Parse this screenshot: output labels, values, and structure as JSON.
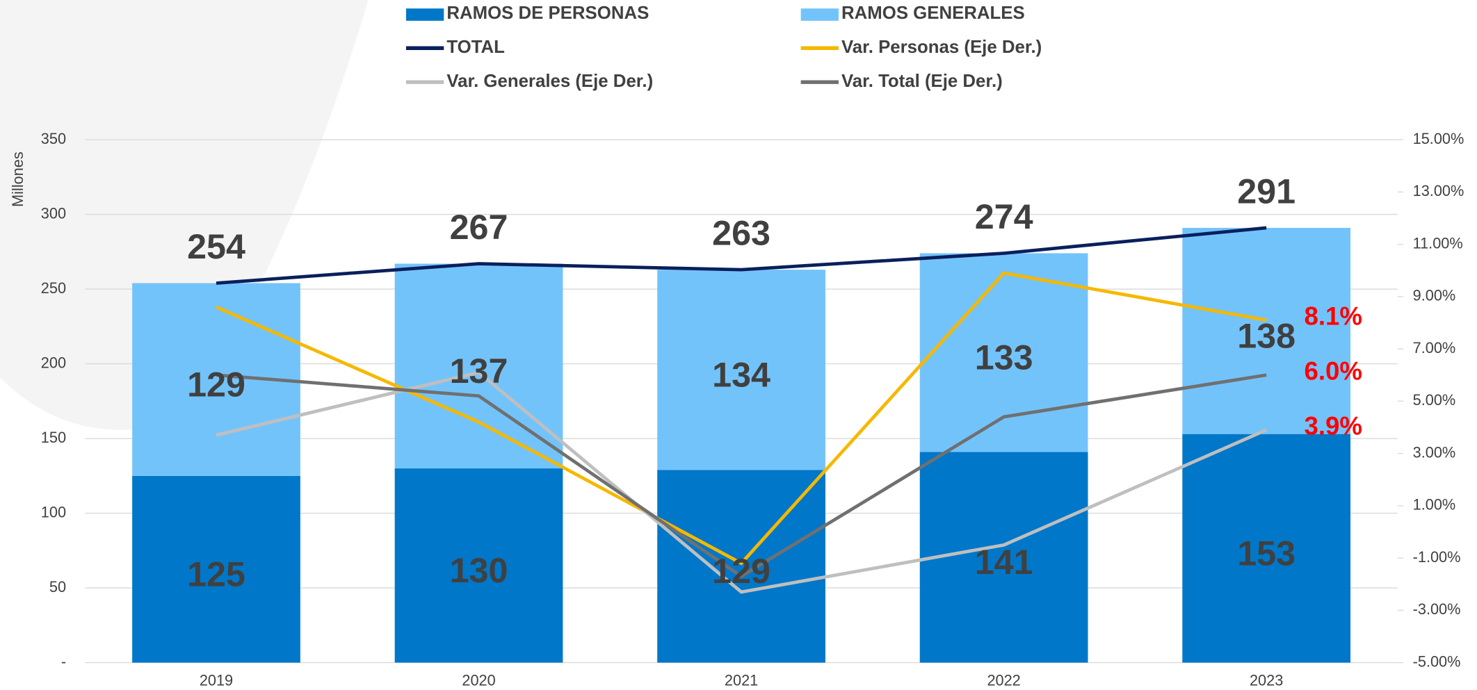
{
  "chart_data": {
    "type": "bar",
    "stacked": true,
    "ylabel": "Millones",
    "categories": [
      "2019",
      "2020",
      "2021",
      "2022",
      "2023"
    ],
    "series": [
      {
        "name": "RAMOS DE PERSONAS",
        "type": "bar",
        "color": "#0077c8",
        "values": [
          125,
          130,
          129,
          141,
          153
        ]
      },
      {
        "name": "RAMOS GENERALES",
        "type": "bar",
        "color": "#73c3fb",
        "values": [
          129,
          137,
          134,
          133,
          138
        ]
      },
      {
        "name": "TOTAL",
        "type": "line",
        "color": "#0a1f5c",
        "values": [
          254,
          267,
          263,
          274,
          291
        ]
      },
      {
        "name": "Var. Personas (Eje Der.)",
        "type": "line",
        "axis": "y2",
        "color": "#f5b800",
        "values": [
          8.6,
          4.2,
          -1.2,
          9.9,
          8.1
        ],
        "value_labels": [
          null,
          null,
          null,
          null,
          "8.1%"
        ]
      },
      {
        "name": "Var. Generales (Eje Der.)",
        "type": "line",
        "axis": "y2",
        "color": "#bfbfbf",
        "values": [
          3.7,
          6.1,
          -2.3,
          -0.5,
          3.9
        ],
        "value_labels": [
          null,
          null,
          null,
          null,
          "3.9%"
        ]
      },
      {
        "name": "Var. Total  (Eje Der.)",
        "type": "line",
        "axis": "y2",
        "color": "#707070",
        "values": [
          6.0,
          5.2,
          -1.7,
          4.4,
          6.0
        ],
        "value_labels": [
          null,
          null,
          null,
          null,
          "6.0%"
        ]
      }
    ],
    "ylim": [
      0,
      350
    ],
    "yticks": [
      {
        "value": 0,
        "label": "-"
      },
      50,
      100,
      150,
      200,
      250,
      300,
      350
    ],
    "y2lim": [
      -5,
      15
    ],
    "y2ticks": [
      {
        "value": -5,
        "label": "-5.00%"
      },
      {
        "value": -3,
        "label": "-3.00%"
      },
      {
        "value": -1,
        "label": "-1.00%"
      },
      {
        "value": 1,
        "label": "1.00%"
      },
      {
        "value": 3,
        "label": "3.00%"
      },
      {
        "value": 5,
        "label": "5.00%"
      },
      {
        "value": 7,
        "label": "7.00%"
      },
      {
        "value": 9,
        "label": "9.00%"
      },
      {
        "value": 11,
        "label": "11.00%"
      },
      {
        "value": 13,
        "label": "13.00%"
      },
      {
        "value": 15,
        "label": "15.00%"
      }
    ],
    "grid": true
  }
}
